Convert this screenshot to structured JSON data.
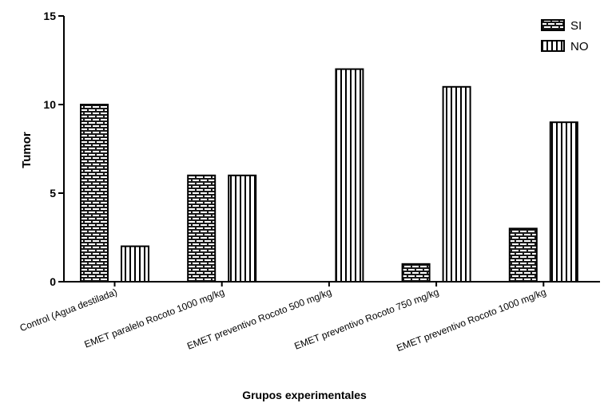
{
  "chart_data": {
    "type": "bar",
    "title": "",
    "xlabel": "Grupos experimentales",
    "ylabel": "Tumor",
    "ylim": [
      0,
      15
    ],
    "yticks": [
      0,
      5,
      10,
      15
    ],
    "grid": false,
    "legend_position": "top-right",
    "categories": [
      "Control (Agua destilada)",
      "EMET paralelo Rocoto 1000 mg/kg",
      "EMET preventivo Rocoto 500 mg/kg",
      "EMET preventivo Rocoto 750 mg/kg",
      "EMET preventivo Rocoto 1000 mg/kg"
    ],
    "series": [
      {
        "name": "SI",
        "values": [
          10,
          6,
          0,
          1,
          3
        ],
        "pattern": "brick",
        "fill": "#1a1a1a"
      },
      {
        "name": "NO",
        "values": [
          2,
          6,
          12,
          11,
          9
        ],
        "pattern": "vertical-stripes",
        "fill": "#ffffff"
      }
    ]
  }
}
